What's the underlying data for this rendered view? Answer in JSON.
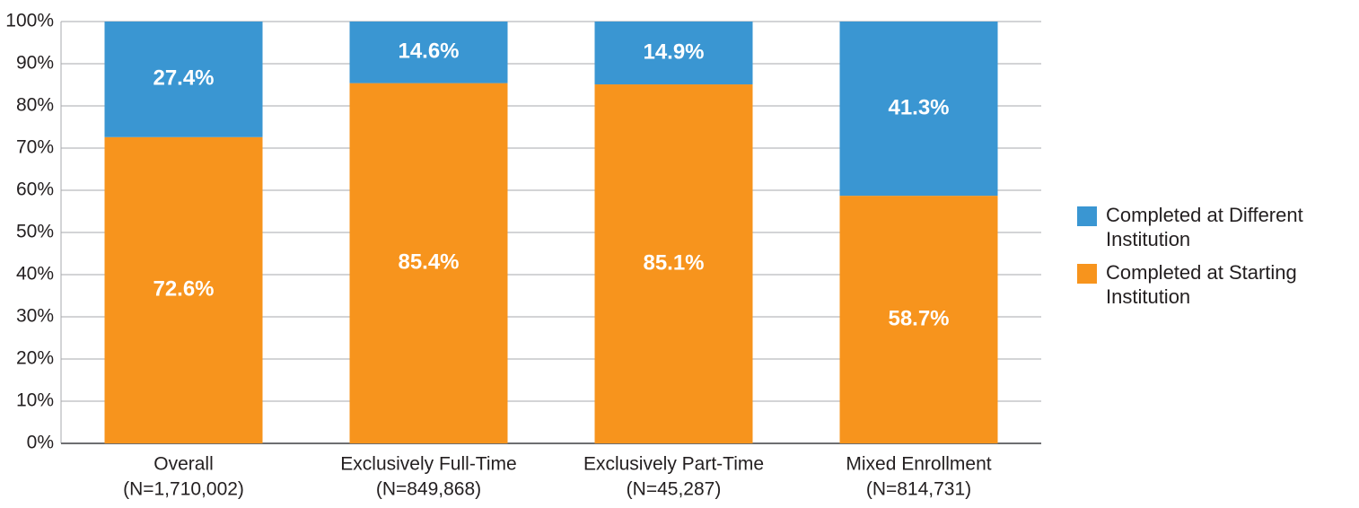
{
  "chart_data": {
    "type": "stacked_bar",
    "categories": [
      "Overall",
      "Exclusively Full-Time",
      "Exclusively Part-Time",
      "Mixed Enrollment"
    ],
    "category_notes": [
      "(N=1,710,002)",
      "(N=849,868)",
      "(N=45,287)",
      "(N=814,731)"
    ],
    "series": [
      {
        "name": "Completed at Starting Institution",
        "color": "#f7941d",
        "values": [
          72.6,
          85.4,
          85.1,
          58.7
        ],
        "value_labels": [
          "72.6%",
          "85.4%",
          "85.1%",
          "58.7%"
        ]
      },
      {
        "name": "Completed at Different Institution",
        "color": "#3a96d2",
        "values": [
          27.4,
          14.6,
          14.9,
          41.3
        ],
        "value_labels": [
          "27.4%",
          "14.6%",
          "14.9%",
          "41.3%"
        ]
      }
    ],
    "ylim": [
      0,
      100
    ],
    "yticks": [
      {
        "value": 0,
        "label": "0%"
      },
      {
        "value": 10,
        "label": "10%"
      },
      {
        "value": 20,
        "label": "20%"
      },
      {
        "value": 30,
        "label": "30%"
      },
      {
        "value": 40,
        "label": "40%"
      },
      {
        "value": 50,
        "label": "50%"
      },
      {
        "value": 60,
        "label": "60%"
      },
      {
        "value": 70,
        "label": "70%"
      },
      {
        "value": 80,
        "label": "80%"
      },
      {
        "value": 90,
        "label": "90%"
      },
      {
        "value": 100,
        "label": "100%"
      }
    ],
    "grid": true,
    "legend_position": "right"
  }
}
